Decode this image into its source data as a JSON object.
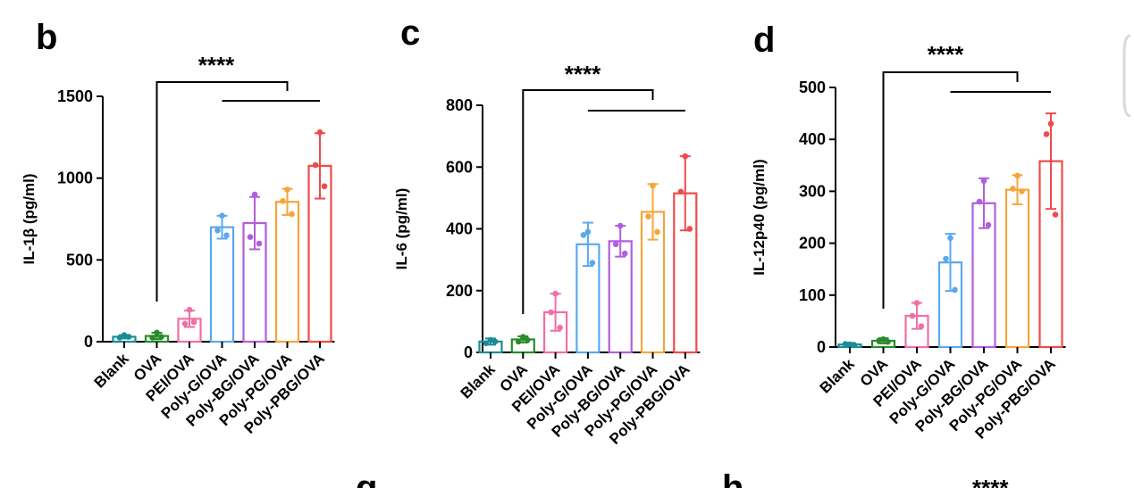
{
  "figure": {
    "partial_labels": [
      "g",
      "h"
    ],
    "partial_significance": "****"
  },
  "chart_data": [
    {
      "panel": "b",
      "type": "bar",
      "ylabel": "IL-1β (pg/ml)",
      "ylim": [
        0,
        1500
      ],
      "yticks": [
        0,
        500,
        1000,
        1500
      ],
      "categories": [
        "Blank",
        "OVA",
        "PEI/OVA",
        "Poly-G/OVA",
        "Poly-BG/OVA",
        "Poly-PG/OVA",
        "Poly-PBG/OVA"
      ],
      "colors": [
        "#1a8c96",
        "#2a8a2a",
        "#f06fa8",
        "#5aa8ee",
        "#b05ee0",
        "#f5a53c",
        "#ef4b4b"
      ],
      "values": [
        30,
        35,
        140,
        700,
        725,
        855,
        1075
      ],
      "errors": [
        10,
        20,
        50,
        70,
        160,
        80,
        200
      ],
      "points": [
        [
          40,
          25,
          30
        ],
        [
          55,
          25,
          30
        ],
        [
          195,
          110,
          120
        ],
        [
          770,
          680,
          650
        ],
        [
          900,
          640,
          600
        ],
        [
          930,
          860,
          780
        ],
        [
          1280,
          1080,
          950
        ]
      ],
      "significance": "****"
    },
    {
      "panel": "c",
      "type": "bar",
      "ylabel": "IL-6 (pg/ml)",
      "ylim": [
        0,
        800
      ],
      "yticks": [
        0,
        200,
        400,
        600,
        800
      ],
      "categories": [
        "Blank",
        "OVA",
        "PEI/OVA",
        "Poly-G/OVA",
        "Poly-BG/OVA",
        "Poly-PG/OVA",
        "Poly-PBG/OVA"
      ],
      "colors": [
        "#1a8c96",
        "#2a8a2a",
        "#f06fa8",
        "#5aa8ee",
        "#b05ee0",
        "#f5a53c",
        "#ef4b4b"
      ],
      "values": [
        35,
        42,
        130,
        350,
        360,
        455,
        515
      ],
      "errors": [
        10,
        10,
        60,
        70,
        50,
        90,
        120
      ],
      "points": [
        [
          40,
          30,
          35
        ],
        [
          50,
          35,
          40
        ],
        [
          190,
          130,
          80
        ],
        [
          390,
          380,
          290
        ],
        [
          410,
          350,
          320
        ],
        [
          540,
          440,
          390
        ],
        [
          635,
          520,
          400
        ]
      ],
      "significance": "****"
    },
    {
      "panel": "d",
      "type": "bar",
      "ylabel": "IL-12p40 (pg/ml)",
      "ylim": [
        0,
        500
      ],
      "yticks": [
        0,
        100,
        200,
        300,
        400,
        500
      ],
      "categories": [
        "Blank",
        "OVA",
        "PEI/OVA",
        "Poly-G/OVA",
        "Poly-BG/OVA",
        "Poly-PG/OVA",
        "Poly-PBG/OVA"
      ],
      "colors": [
        "#1a8c96",
        "#2a8a2a",
        "#f06fa8",
        "#5aa8ee",
        "#b05ee0",
        "#f5a53c",
        "#ef4b4b"
      ],
      "values": [
        5,
        12,
        60,
        163,
        277,
        303,
        358
      ],
      "errors": [
        3,
        5,
        25,
        55,
        48,
        28,
        92
      ],
      "points": [
        [
          5,
          6,
          4
        ],
        [
          15,
          12,
          10
        ],
        [
          85,
          60,
          40
        ],
        [
          210,
          170,
          110
        ],
        [
          320,
          280,
          235
        ],
        [
          330,
          305,
          300
        ],
        [
          430,
          410,
          255
        ]
      ],
      "significance": "****"
    }
  ]
}
